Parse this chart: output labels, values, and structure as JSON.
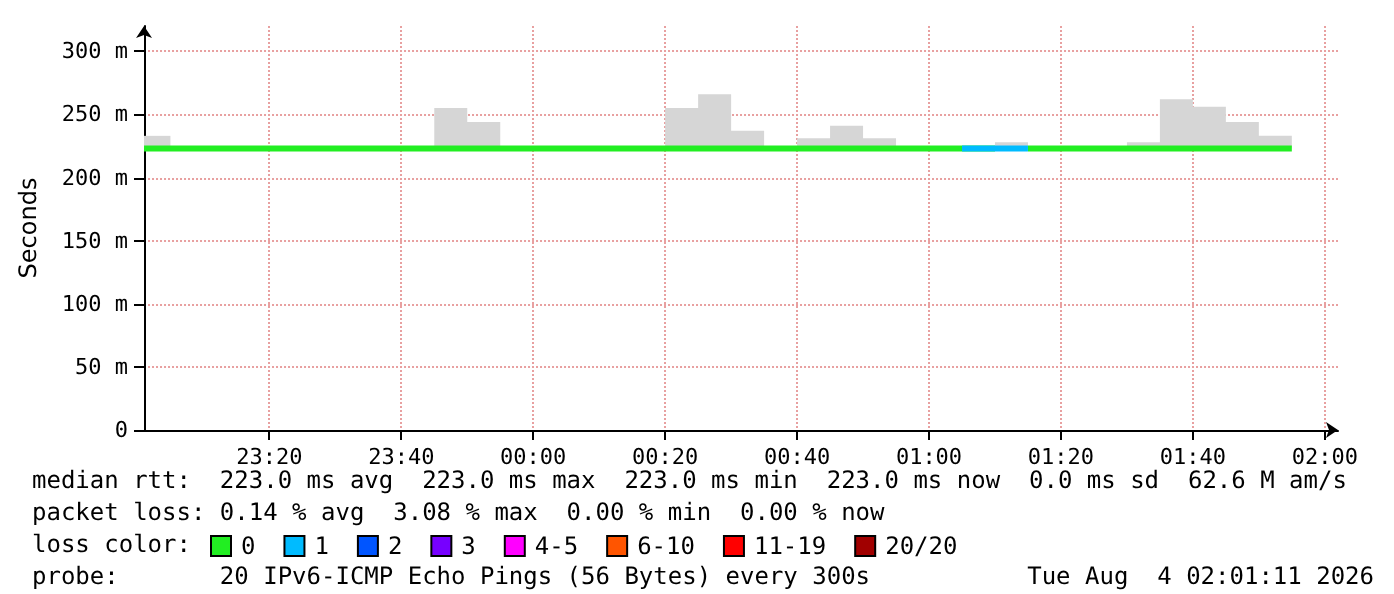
{
  "chart_data": {
    "type": "step",
    "ylabel": "Seconds",
    "legend_title": "loss color:",
    "legend": "bottom",
    "grid": true,
    "marker": "none",
    "line_style": "solid",
    "xlim": [
      "2026-08-03T23:01",
      "2026-08-04T02:02"
    ],
    "xticks": [
      {
        "value": "2026-08-03T23:20",
        "label": "23:20"
      },
      {
        "value": "2026-08-03T23:40",
        "label": "23:40"
      },
      {
        "value": "2026-08-04T00:00",
        "label": "00:00"
      },
      {
        "value": "2026-08-04T00:20",
        "label": "00:20"
      },
      {
        "value": "2026-08-04T00:40",
        "label": "00:40"
      },
      {
        "value": "2026-08-04T01:00",
        "label": "01:00"
      },
      {
        "value": "2026-08-04T01:20",
        "label": "01:20"
      },
      {
        "value": "2026-08-04T01:40",
        "label": "01:40"
      },
      {
        "value": "2026-08-04T02:00",
        "label": "02:00"
      }
    ],
    "ylim": [
      0,
      320
    ],
    "yticks": [
      0,
      {
        "value": 50,
        "label": "50 m"
      },
      {
        "value": 100,
        "label": "100 m"
      },
      {
        "value": 150,
        "label": "150 m"
      },
      {
        "value": 200,
        "label": "200 m"
      },
      {
        "value": 250,
        "label": "250 m"
      },
      {
        "value": 300,
        "label": "300 m"
      }
    ],
    "series": [
      {
        "name": "0",
        "color": "#22ee22",
        "x": [
          "2026-08-03T23:01",
          "2026-08-03T23:05",
          "2026-08-03T23:10",
          "2026-08-03T23:15",
          "2026-08-03T23:20",
          "2026-08-03T23:25",
          "2026-08-03T23:30",
          "2026-08-03T23:35",
          "2026-08-03T23:40",
          "2026-08-03T23:45",
          "2026-08-03T23:50",
          "2026-08-03T23:55",
          "2026-08-04T00:00",
          "2026-08-04T00:05",
          "2026-08-04T00:10",
          "2026-08-04T00:15",
          "2026-08-04T00:20",
          "2026-08-04T00:25",
          "2026-08-04T00:30",
          "2026-08-04T00:35",
          "2026-08-04T00:40",
          "2026-08-04T00:45",
          "2026-08-04T00:50",
          "2026-08-04T00:55",
          "2026-08-04T01:00",
          "2026-08-04T01:05",
          "2026-08-04T01:10",
          "2026-08-04T01:15",
          "2026-08-04T01:20",
          "2026-08-04T01:25",
          "2026-08-04T01:30",
          "2026-08-04T01:35",
          "2026-08-04T01:40",
          "2026-08-04T01:45",
          "2026-08-04T01:50",
          "2026-08-04T01:55"
        ],
        "values": [
          223,
          223,
          223,
          223,
          223,
          223,
          223,
          223,
          223,
          223,
          223,
          223,
          223,
          223,
          223,
          223,
          223,
          223,
          223,
          223,
          223,
          223,
          223,
          223,
          223,
          223,
          null,
          223,
          223,
          223,
          223,
          223,
          223,
          223,
          223,
          223
        ],
        "lower": [
          223,
          223,
          null,
          null,
          null,
          null,
          null,
          null,
          null,
          223,
          223,
          223,
          null,
          null,
          null,
          null,
          223,
          223,
          223,
          223,
          223,
          223,
          223,
          223,
          null,
          null,
          223,
          223,
          null,
          null,
          223,
          223,
          223,
          223,
          223,
          223
        ],
        "upper": [
          233,
          233,
          null,
          null,
          null,
          null,
          null,
          null,
          null,
          255,
          244,
          244,
          null,
          null,
          null,
          null,
          255,
          266,
          237,
          223,
          231,
          241,
          231,
          231,
          null,
          null,
          228,
          228,
          null,
          null,
          228,
          262,
          256,
          244,
          233,
          233
        ]
      },
      {
        "name": "1",
        "color": "#00bbff",
        "x": [
          "2026-08-04T01:05",
          "2026-08-04T01:10",
          "2026-08-04T01:15"
        ],
        "values": [
          223,
          223,
          223
        ]
      },
      {
        "name": "2",
        "color": "#0055ff"
      },
      {
        "name": "3",
        "color": "#7700ff"
      },
      {
        "name": "4-5",
        "color": "#ff00ff"
      },
      {
        "name": "6-10",
        "color": "#ff5500"
      },
      {
        "name": "11-19",
        "color": "#ff0000"
      },
      {
        "name": "20/20",
        "color": "#a10000"
      }
    ],
    "annotations": [
      "median rtt:  223.0 ms avg  223.0 ms max  223.0 ms min  223.0 ms now  0.0 ms sd  62.6 M am/s",
      "packet loss: 0.14 % avg  3.08 % max  0.00 % min  0.00 % now",
      "probe:       20 IPv6-ICMP Echo Pings (56 Bytes) every 300s",
      "Tue Aug  4 02:01:11 2026"
    ]
  }
}
